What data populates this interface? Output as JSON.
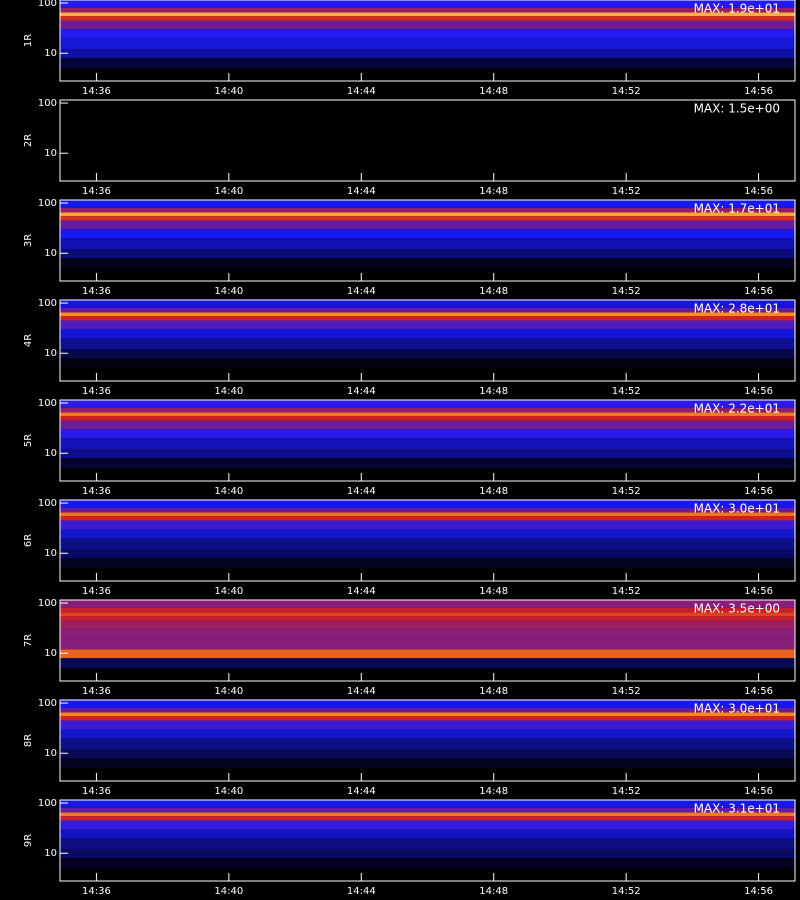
{
  "chart_data": [
    {
      "type": "heatmap",
      "ylabel": "1R",
      "max": {
        "value": 19,
        "label": "MAX: 1.9e+01"
      },
      "log_y": true,
      "ylim": [
        2.8,
        115
      ],
      "yticks": [
        10,
        100
      ],
      "xlim": [
        874.9,
        897.1
      ],
      "xticks": [
        {
          "value": 876,
          "label": "14:36"
        },
        {
          "value": 880,
          "label": "14:40"
        },
        {
          "value": 884,
          "label": "14:44"
        },
        {
          "value": 888,
          "label": "14:48"
        },
        {
          "value": 892,
          "label": "14:52"
        },
        {
          "value": 896,
          "label": "14:56"
        }
      ],
      "colormap": [
        "#000000",
        "#1a1aff",
        "#d02020",
        "#ffa020",
        "#ffffff"
      ],
      "y_bins": [
        2.8,
        5,
        8,
        12,
        20,
        30,
        45,
        55,
        65,
        80,
        115
      ],
      "values": [
        0,
        1,
        3,
        4,
        5,
        7,
        10,
        15,
        8,
        5
      ]
    },
    {
      "type": "heatmap",
      "ylabel": "2R",
      "max": {
        "value": 1.5,
        "label": "MAX: 1.5e+00"
      },
      "log_y": true,
      "ylim": [
        2.8,
        115
      ],
      "yticks": [
        10,
        100
      ],
      "xlim": [
        874.9,
        897.1
      ],
      "xticks": [
        {
          "value": 876,
          "label": "14:36"
        },
        {
          "value": 880,
          "label": "14:40"
        },
        {
          "value": 884,
          "label": "14:44"
        },
        {
          "value": 888,
          "label": "14:48"
        },
        {
          "value": 892,
          "label": "14:52"
        },
        {
          "value": 896,
          "label": "14:56"
        }
      ],
      "colormap": [
        "#000000",
        "#1a1aff",
        "#d02020",
        "#ffa020",
        "#ffffff"
      ],
      "y_bins": [
        2.8,
        5,
        8,
        12,
        20,
        30,
        45,
        55,
        65,
        80,
        115
      ],
      "values": [
        0,
        0,
        0,
        0,
        0,
        0,
        0,
        0,
        0,
        0
      ]
    },
    {
      "type": "heatmap",
      "ylabel": "3R",
      "max": {
        "value": 17,
        "label": "MAX: 1.7e+01"
      },
      "log_y": true,
      "ylim": [
        2.8,
        115
      ],
      "yticks": [
        10,
        100
      ],
      "xlim": [
        874.9,
        897.1
      ],
      "xticks": [
        {
          "value": 876,
          "label": "14:36"
        },
        {
          "value": 880,
          "label": "14:40"
        },
        {
          "value": 884,
          "label": "14:44"
        },
        {
          "value": 888,
          "label": "14:48"
        },
        {
          "value": 892,
          "label": "14:52"
        },
        {
          "value": 896,
          "label": "14:56"
        }
      ],
      "colormap": [
        "#000000",
        "#1a1aff",
        "#d02020",
        "#ffa020",
        "#ffffff"
      ],
      "y_bins": [
        2.8,
        5,
        8,
        12,
        20,
        30,
        45,
        55,
        65,
        80,
        115
      ],
      "values": [
        0,
        0.5,
        2,
        3,
        4,
        6,
        9,
        13,
        7,
        4
      ]
    },
    {
      "type": "heatmap",
      "ylabel": "4R",
      "max": {
        "value": 28,
        "label": "MAX: 2.8e+01"
      },
      "log_y": true,
      "ylim": [
        2.8,
        115
      ],
      "yticks": [
        10,
        100
      ],
      "xlim": [
        874.9,
        897.1
      ],
      "xticks": [
        {
          "value": 876,
          "label": "14:36"
        },
        {
          "value": 880,
          "label": "14:40"
        },
        {
          "value": 884,
          "label": "14:44"
        },
        {
          "value": 888,
          "label": "14:48"
        },
        {
          "value": 892,
          "label": "14:52"
        },
        {
          "value": 896,
          "label": "14:56"
        }
      ],
      "colormap": [
        "#000000",
        "#1a1aff",
        "#d02020",
        "#ffa020",
        "#ffffff"
      ],
      "y_bins": [
        2.8,
        5,
        8,
        12,
        20,
        30,
        45,
        55,
        65,
        80,
        115
      ],
      "values": [
        0,
        0.5,
        2,
        4,
        6,
        9,
        14,
        20,
        10,
        6
      ]
    },
    {
      "type": "heatmap",
      "ylabel": "5R",
      "max": {
        "value": 22,
        "label": "MAX: 2.2e+01"
      },
      "log_y": true,
      "ylim": [
        2.8,
        115
      ],
      "yticks": [
        10,
        100
      ],
      "xlim": [
        874.9,
        897.1
      ],
      "xticks": [
        {
          "value": 876,
          "label": "14:36"
        },
        {
          "value": 880,
          "label": "14:40"
        },
        {
          "value": 884,
          "label": "14:44"
        },
        {
          "value": 888,
          "label": "14:48"
        },
        {
          "value": 892,
          "label": "14:52"
        },
        {
          "value": 896,
          "label": "14:56"
        }
      ],
      "colormap": [
        "#000000",
        "#1a1aff",
        "#d02020",
        "#ffa020",
        "#ffffff"
      ],
      "y_bins": [
        2.8,
        5,
        8,
        12,
        20,
        30,
        45,
        55,
        65,
        80,
        115
      ],
      "values": [
        0,
        1,
        3,
        4,
        6,
        8,
        11,
        15,
        9,
        6
      ]
    },
    {
      "type": "heatmap",
      "ylabel": "6R",
      "max": {
        "value": 30,
        "label": "MAX: 3.0e+01"
      },
      "log_y": true,
      "ylim": [
        2.8,
        115
      ],
      "yticks": [
        10,
        100
      ],
      "xlim": [
        874.9,
        897.1
      ],
      "xticks": [
        {
          "value": 876,
          "label": "14:36"
        },
        {
          "value": 880,
          "label": "14:40"
        },
        {
          "value": 884,
          "label": "14:44"
        },
        {
          "value": 888,
          "label": "14:48"
        },
        {
          "value": 892,
          "label": "14:52"
        },
        {
          "value": 896,
          "label": "14:56"
        }
      ],
      "colormap": [
        "#000000",
        "#1a1aff",
        "#d02020",
        "#ffa020",
        "#ffffff"
      ],
      "y_bins": [
        2.8,
        5,
        8,
        12,
        20,
        30,
        45,
        55,
        65,
        80,
        115
      ],
      "values": [
        0,
        1,
        3,
        4,
        6,
        9,
        15,
        20,
        11,
        7
      ]
    },
    {
      "type": "heatmap",
      "ylabel": "7R",
      "max": {
        "value": 3.5,
        "label": "MAX: 3.5e+00"
      },
      "log_y": true,
      "ylim": [
        2.8,
        115
      ],
      "yticks": [
        10,
        100
      ],
      "xlim": [
        874.9,
        897.1
      ],
      "xticks": [
        {
          "value": 876,
          "label": "14:36"
        },
        {
          "value": 880,
          "label": "14:40"
        },
        {
          "value": 884,
          "label": "14:44"
        },
        {
          "value": 888,
          "label": "14:48"
        },
        {
          "value": 892,
          "label": "14:52"
        },
        {
          "value": 896,
          "label": "14:56"
        }
      ],
      "colormap": [
        "#000000",
        "#1a1aff",
        "#d02020",
        "#ffa020",
        "#ffffff"
      ],
      "y_bins": [
        2.8,
        5,
        8,
        12,
        20,
        30,
        45,
        55,
        65,
        80,
        115
      ],
      "values": [
        0,
        0.3,
        2.2,
        1.4,
        1.4,
        1.5,
        1.7,
        2,
        1.7,
        1.4
      ]
    },
    {
      "type": "heatmap",
      "ylabel": "8R",
      "max": {
        "value": 30,
        "label": "MAX: 3.0e+01"
      },
      "log_y": true,
      "ylim": [
        2.8,
        115
      ],
      "yticks": [
        10,
        100
      ],
      "xlim": [
        874.9,
        897.1
      ],
      "xticks": [
        {
          "value": 876,
          "label": "14:36"
        },
        {
          "value": 880,
          "label": "14:40"
        },
        {
          "value": 884,
          "label": "14:44"
        },
        {
          "value": 888,
          "label": "14:48"
        },
        {
          "value": 892,
          "label": "14:52"
        },
        {
          "value": 896,
          "label": "14:56"
        }
      ],
      "colormap": [
        "#000000",
        "#1a1aff",
        "#d02020",
        "#ffa020",
        "#ffffff"
      ],
      "y_bins": [
        2.8,
        5,
        8,
        12,
        20,
        30,
        45,
        55,
        65,
        80,
        115
      ],
      "values": [
        0,
        1,
        2.5,
        4,
        6,
        9,
        15,
        21,
        11,
        7
      ]
    },
    {
      "type": "heatmap",
      "ylabel": "9R",
      "max": {
        "value": 31,
        "label": "MAX: 3.1e+01"
      },
      "log_y": true,
      "ylim": [
        2.8,
        115
      ],
      "yticks": [
        10,
        100
      ],
      "xlim": [
        874.9,
        897.1
      ],
      "xticks": [
        {
          "value": 876,
          "label": "14:36"
        },
        {
          "value": 880,
          "label": "14:40"
        },
        {
          "value": 884,
          "label": "14:44"
        },
        {
          "value": 888,
          "label": "14:48"
        },
        {
          "value": 892,
          "label": "14:52"
        },
        {
          "value": 896,
          "label": "14:56"
        }
      ],
      "colormap": [
        "#000000",
        "#1a1aff",
        "#d02020",
        "#ffa020",
        "#ffffff"
      ],
      "y_bins": [
        2.8,
        5,
        8,
        12,
        20,
        30,
        45,
        55,
        65,
        80,
        115
      ],
      "values": [
        0,
        1,
        3,
        4,
        6,
        9,
        15,
        21,
        11,
        7
      ]
    }
  ]
}
